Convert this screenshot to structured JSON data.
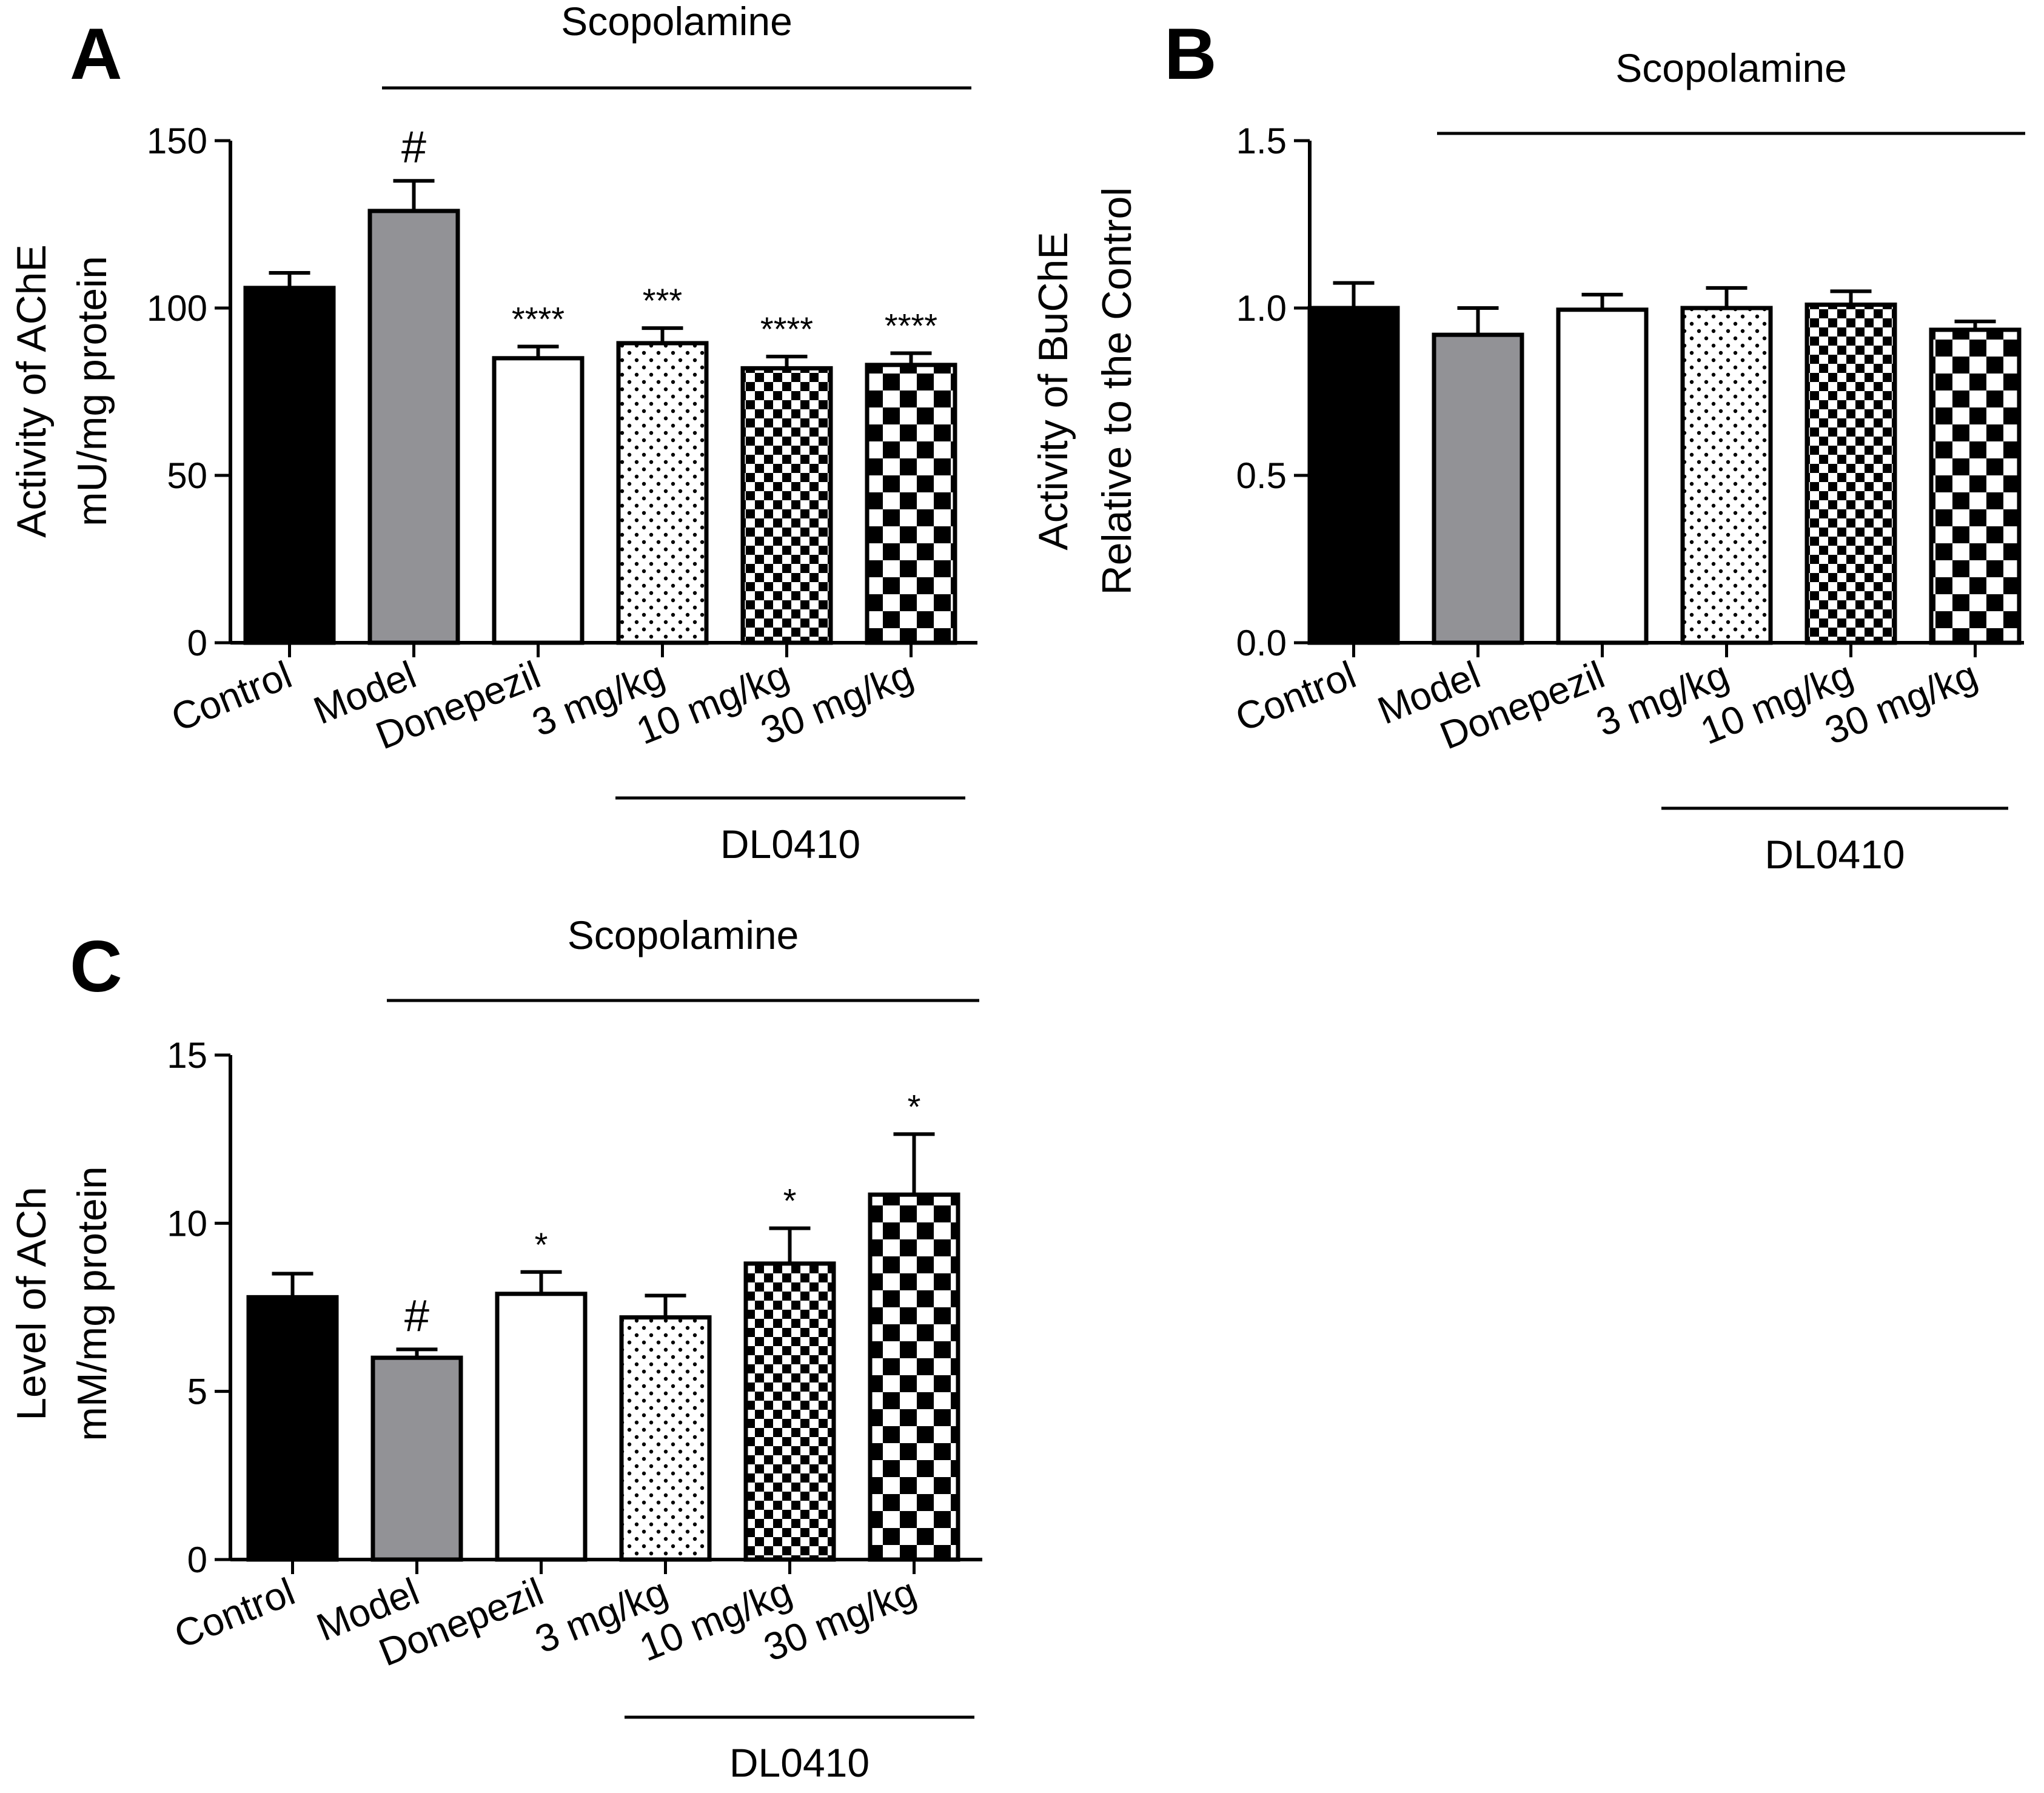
{
  "colors": {
    "black": "#000000",
    "gray": "#929296",
    "white": "#ffffff"
  },
  "chart_data": [
    {
      "panel": "A",
      "type": "bar",
      "title": "",
      "group_label": "Scopolamine",
      "sub_group_label": "DL0410",
      "ylabel_lines": [
        "Activity of AChE",
        "mU/mg protein"
      ],
      "xlabel": "",
      "ylim": [
        0,
        150
      ],
      "yticks": [
        0,
        50,
        100,
        150
      ],
      "ytick_labels": [
        "0",
        "50",
        "100",
        "150"
      ],
      "categories": [
        "Control",
        "Model",
        "Donepezil",
        "3 mg/kg",
        "10 mg/kg",
        "30 mg/kg"
      ],
      "values": [
        106,
        129,
        85,
        89.5,
        82,
        83
      ],
      "errors": [
        4.5,
        9,
        3.5,
        4.5,
        3.5,
        3.5
      ],
      "fills": [
        "black",
        "gray",
        "white",
        "dots",
        "check-small",
        "check-large"
      ],
      "annotations": [
        "",
        "#",
        "****",
        "***",
        "****",
        "****"
      ]
    },
    {
      "panel": "B",
      "type": "bar",
      "title": "",
      "group_label": "Scopolamine",
      "sub_group_label": "DL0410",
      "ylabel_lines": [
        "Activity of BuChE",
        "Relative to the Control"
      ],
      "xlabel": "",
      "ylim": [
        0,
        1.5
      ],
      "yticks": [
        0,
        0.5,
        1.0,
        1.5
      ],
      "ytick_labels": [
        "0.0",
        "0.5",
        "1.0",
        "1.5"
      ],
      "categories": [
        "Control",
        "Model",
        "Donepezil",
        "3 mg/kg",
        "10 mg/kg",
        "30 mg/kg"
      ],
      "values": [
        1.0,
        0.92,
        0.995,
        1.0,
        1.01,
        0.935
      ],
      "errors": [
        0.075,
        0.08,
        0.045,
        0.06,
        0.04,
        0.025
      ],
      "fills": [
        "black",
        "gray",
        "white",
        "dots",
        "check-small",
        "check-large"
      ],
      "annotations": [
        "",
        "",
        "",
        "",
        "",
        ""
      ]
    },
    {
      "panel": "C",
      "type": "bar",
      "title": "",
      "group_label": "Scopolamine",
      "sub_group_label": "DL0410",
      "ylabel_lines": [
        "Level of ACh",
        "mM/mg protein"
      ],
      "xlabel": "",
      "ylim": [
        0,
        15
      ],
      "yticks": [
        0,
        5,
        10,
        15
      ],
      "ytick_labels": [
        "0",
        "5",
        "10",
        "15"
      ],
      "categories": [
        "Control",
        "Model",
        "Donepezil",
        "3 mg/kg",
        "10 mg/kg",
        "30 mg/kg"
      ],
      "values": [
        7.8,
        6.0,
        7.9,
        7.2,
        8.8,
        10.85
      ],
      "errors": [
        0.7,
        0.25,
        0.65,
        0.65,
        1.05,
        1.8
      ],
      "fills": [
        "black",
        "gray",
        "white",
        "dots",
        "check-small",
        "check-large"
      ],
      "annotations": [
        "",
        "#",
        "*",
        "",
        "*",
        "*"
      ]
    }
  ]
}
